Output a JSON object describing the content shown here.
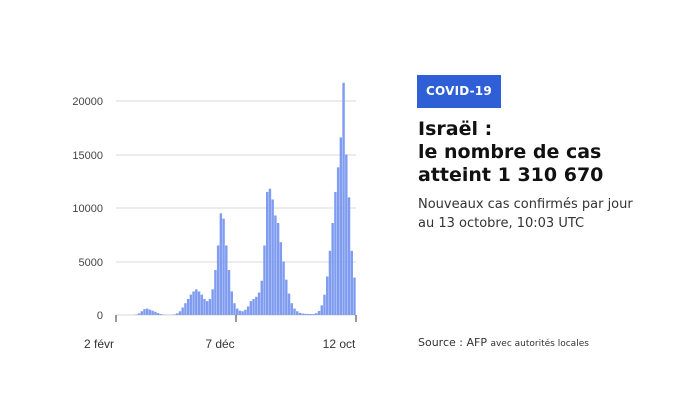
{
  "badge": "COVID-19",
  "title_lines": [
    "Israël :",
    "le nombre de cas",
    "atteint 1 310 670"
  ],
  "subtitle_lines": [
    "Nouveaux cas confirmés par jour",
    "au 13 octobre, 10:03 UTC"
  ],
  "source": {
    "label": "Source : AFP",
    "detail": "avec autorités locales"
  },
  "colors": {
    "badge": "#2f5fd7",
    "bars": "#7f9cf0",
    "grid": "#d9d9d9"
  },
  "chart_data": {
    "type": "bar",
    "title": "Israël : le nombre de cas atteint 1 310 670",
    "subtitle": "Nouveaux cas confirmés par jour au 13 octobre, 10:03 UTC",
    "x_tick_labels": [
      "2 févr",
      "7 déc",
      "12 oct"
    ],
    "y_ticks": [
      0,
      5000,
      10000,
      15000,
      20000
    ],
    "y_tick_labels": [
      "0",
      "5000",
      "10000",
      "15000",
      "20000"
    ],
    "ylim": [
      0,
      22000
    ],
    "grid": true,
    "legend": "none",
    "series": [
      {
        "values_weekly_approx": [
          0,
          0,
          0,
          0,
          0,
          0,
          5,
          50,
          150,
          350,
          550,
          600,
          500,
          400,
          300,
          180,
          90,
          40,
          20,
          15,
          20,
          60,
          150,
          350,
          700,
          1100,
          1500,
          1900,
          2200,
          2400,
          2200,
          1900,
          1500,
          1300,
          1500,
          2400,
          4200,
          6500,
          9500,
          9000,
          6500,
          4200,
          2200,
          1100,
          600,
          400,
          350,
          500,
          800,
          1300,
          1500,
          1700,
          2100,
          3200,
          6500,
          11500,
          11800,
          10800,
          9300,
          8600,
          6800,
          5000,
          3300,
          2000,
          1100,
          600,
          350,
          200,
          140,
          110,
          100,
          90,
          100,
          170,
          380,
          900,
          1900,
          3600,
          6000,
          8600,
          11500,
          13800,
          16600,
          21700,
          15000,
          11000,
          6000,
          3500
        ]
      }
    ]
  }
}
